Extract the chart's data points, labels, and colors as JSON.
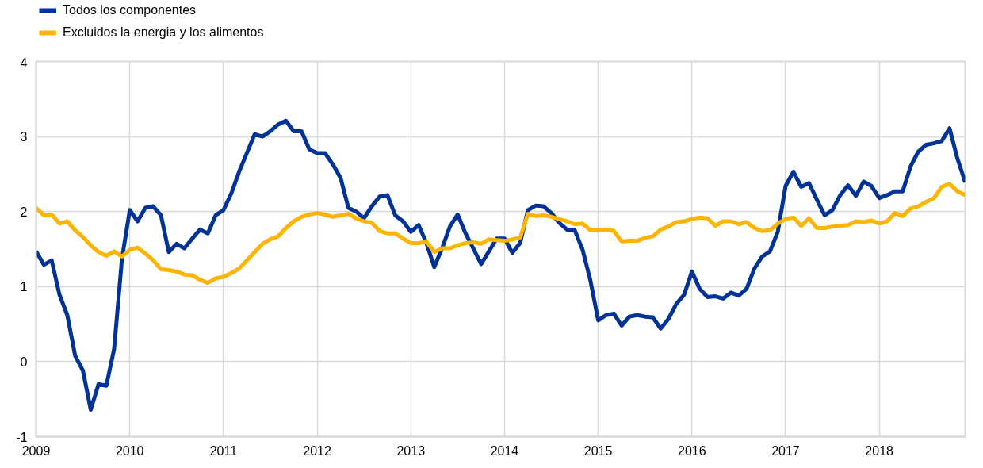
{
  "chart_data": {
    "type": "line",
    "x": [
      "2009-01",
      "2009-02",
      "2009-03",
      "2009-04",
      "2009-05",
      "2009-06",
      "2009-07",
      "2009-08",
      "2009-09",
      "2009-10",
      "2009-11",
      "2009-12",
      "2010-01",
      "2010-02",
      "2010-03",
      "2010-04",
      "2010-05",
      "2010-06",
      "2010-07",
      "2010-08",
      "2010-09",
      "2010-10",
      "2010-11",
      "2010-12",
      "2011-01",
      "2011-02",
      "2011-03",
      "2011-04",
      "2011-05",
      "2011-06",
      "2011-07",
      "2011-08",
      "2011-09",
      "2011-10",
      "2011-11",
      "2011-12",
      "2012-01",
      "2012-02",
      "2012-03",
      "2012-04",
      "2012-05",
      "2012-06",
      "2012-07",
      "2012-08",
      "2012-09",
      "2012-10",
      "2012-11",
      "2012-12",
      "2013-01",
      "2013-02",
      "2013-03",
      "2013-04",
      "2013-05",
      "2013-06",
      "2013-07",
      "2013-08",
      "2013-09",
      "2013-10",
      "2013-11",
      "2013-12",
      "2014-01",
      "2014-02",
      "2014-03",
      "2014-04",
      "2014-05",
      "2014-06",
      "2014-07",
      "2014-08",
      "2014-09",
      "2014-10",
      "2014-11",
      "2014-12",
      "2015-01",
      "2015-02",
      "2015-03",
      "2015-04",
      "2015-05",
      "2015-06",
      "2015-07",
      "2015-08",
      "2015-09",
      "2015-10",
      "2015-11",
      "2015-12",
      "2016-01",
      "2016-02",
      "2016-03",
      "2016-04",
      "2016-05",
      "2016-06",
      "2016-07",
      "2016-08",
      "2016-09",
      "2016-10",
      "2016-11",
      "2016-12",
      "2017-01",
      "2017-02",
      "2017-03",
      "2017-04",
      "2017-05",
      "2017-06",
      "2017-07",
      "2017-08",
      "2017-09",
      "2017-10",
      "2017-11",
      "2017-12",
      "2018-01",
      "2018-02",
      "2018-03",
      "2018-04",
      "2018-05",
      "2018-06",
      "2018-07",
      "2018-08",
      "2018-09",
      "2018-10",
      "2018-11",
      "2018-12"
    ],
    "series": [
      {
        "name": "Todos los componentes",
        "color": "#003399",
        "values": [
          1.47,
          1.29,
          1.35,
          0.89,
          0.62,
          0.08,
          -0.12,
          -0.64,
          -0.3,
          -0.32,
          0.17,
          1.37,
          2.02,
          1.87,
          2.05,
          2.07,
          1.95,
          1.46,
          1.57,
          1.51,
          1.64,
          1.76,
          1.71,
          1.95,
          2.02,
          2.24,
          2.53,
          2.78,
          3.03,
          3.0,
          3.07,
          3.16,
          3.21,
          3.07,
          3.07,
          2.83,
          2.78,
          2.78,
          2.63,
          2.45,
          2.05,
          2.0,
          1.91,
          2.07,
          2.2,
          2.22,
          1.95,
          1.87,
          1.73,
          1.82,
          1.58,
          1.26,
          1.51,
          1.8,
          1.96,
          1.71,
          1.51,
          1.3,
          1.47,
          1.64,
          1.64,
          1.45,
          1.58,
          2.02,
          2.08,
          2.07,
          1.98,
          1.85,
          1.76,
          1.75,
          1.49,
          1.08,
          0.55,
          0.62,
          0.64,
          0.48,
          0.6,
          0.62,
          0.6,
          0.59,
          0.44,
          0.57,
          0.77,
          0.89,
          1.2,
          0.97,
          0.86,
          0.87,
          0.84,
          0.92,
          0.88,
          0.97,
          1.24,
          1.4,
          1.47,
          1.73,
          2.34,
          2.53,
          2.33,
          2.38,
          2.16,
          1.95,
          2.02,
          2.22,
          2.35,
          2.21,
          2.4,
          2.34,
          2.18,
          2.22,
          2.27,
          2.27,
          2.6,
          2.8,
          2.89,
          2.91,
          2.94,
          3.11,
          2.71,
          2.39
        ]
      },
      {
        "name": "Excluidos la energia y los alimentos",
        "color": "#ffb400",
        "values": [
          2.05,
          1.95,
          1.96,
          1.84,
          1.87,
          1.75,
          1.66,
          1.55,
          1.46,
          1.41,
          1.47,
          1.4,
          1.49,
          1.52,
          1.44,
          1.35,
          1.23,
          1.22,
          1.2,
          1.16,
          1.15,
          1.09,
          1.05,
          1.11,
          1.13,
          1.18,
          1.24,
          1.35,
          1.46,
          1.57,
          1.63,
          1.67,
          1.78,
          1.87,
          1.93,
          1.96,
          1.98,
          1.96,
          1.93,
          1.95,
          1.97,
          1.91,
          1.87,
          1.85,
          1.74,
          1.71,
          1.71,
          1.64,
          1.58,
          1.58,
          1.6,
          1.46,
          1.51,
          1.51,
          1.55,
          1.58,
          1.59,
          1.57,
          1.63,
          1.62,
          1.61,
          1.63,
          1.65,
          1.97,
          1.94,
          1.95,
          1.93,
          1.9,
          1.87,
          1.83,
          1.84,
          1.75,
          1.75,
          1.76,
          1.74,
          1.6,
          1.61,
          1.61,
          1.65,
          1.67,
          1.76,
          1.8,
          1.86,
          1.87,
          1.9,
          1.92,
          1.91,
          1.81,
          1.87,
          1.87,
          1.83,
          1.86,
          1.78,
          1.74,
          1.75,
          1.84,
          1.9,
          1.92,
          1.81,
          1.91,
          1.78,
          1.78,
          1.8,
          1.81,
          1.82,
          1.87,
          1.86,
          1.88,
          1.84,
          1.87,
          1.98,
          1.94,
          2.04,
          2.07,
          2.13,
          2.18,
          2.33,
          2.37,
          2.27,
          2.22
        ]
      }
    ],
    "xlim": [
      "2009-01",
      "2018-12"
    ],
    "xticks": [
      {
        "value": "2009-01",
        "label": "2009"
      },
      {
        "value": "2010-01",
        "label": "2010"
      },
      {
        "value": "2011-01",
        "label": "2011"
      },
      {
        "value": "2012-01",
        "label": "2012"
      },
      {
        "value": "2013-01",
        "label": "2013"
      },
      {
        "value": "2014-01",
        "label": "2014"
      },
      {
        "value": "2015-01",
        "label": "2015"
      },
      {
        "value": "2016-01",
        "label": "2016"
      },
      {
        "value": "2017-01",
        "label": "2017"
      },
      {
        "value": "2018-01",
        "label": "2018"
      }
    ],
    "ylim": [
      -1,
      4
    ],
    "yticks": [
      -1,
      0,
      1,
      2,
      3,
      4
    ],
    "grid": true,
    "legend": "top left",
    "line_style": "solid"
  }
}
